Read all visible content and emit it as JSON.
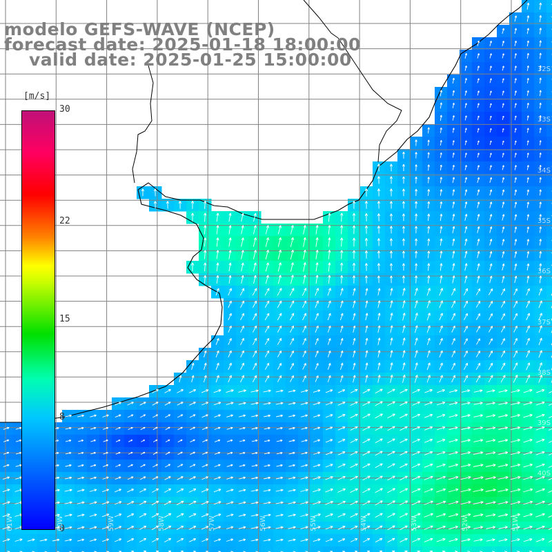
{
  "title": {
    "line1": "modelo GEFS-WAVE (NCEP)",
    "line2": "forecast date: 2025-01-18 18:00:00",
    "line3": "valid date: 2025-01-25 15:00:00"
  },
  "colorbar": {
    "unit": "[m/s]",
    "ticks": [
      "0",
      "8",
      "15",
      "22",
      "30"
    ],
    "range": [
      0,
      30
    ],
    "colors": [
      "#0000ff",
      "#00c8ff",
      "#00e000",
      "#ffff00",
      "#ff8000",
      "#ff0000",
      "#c01078"
    ]
  },
  "map": {
    "lat_labels": [
      "32S",
      "33S",
      "34S",
      "35S",
      "36S",
      "37S",
      "38S",
      "39S",
      "40S"
    ],
    "lon_labels": [
      "61W",
      "60W",
      "59W",
      "58W",
      "57W",
      "56W",
      "55W",
      "54W",
      "53W",
      "52W",
      "51W"
    ],
    "land_color": "#ffffff",
    "coast_color": "#000000",
    "grid_color": "#808080",
    "vector_color": "#ffffff"
  }
}
